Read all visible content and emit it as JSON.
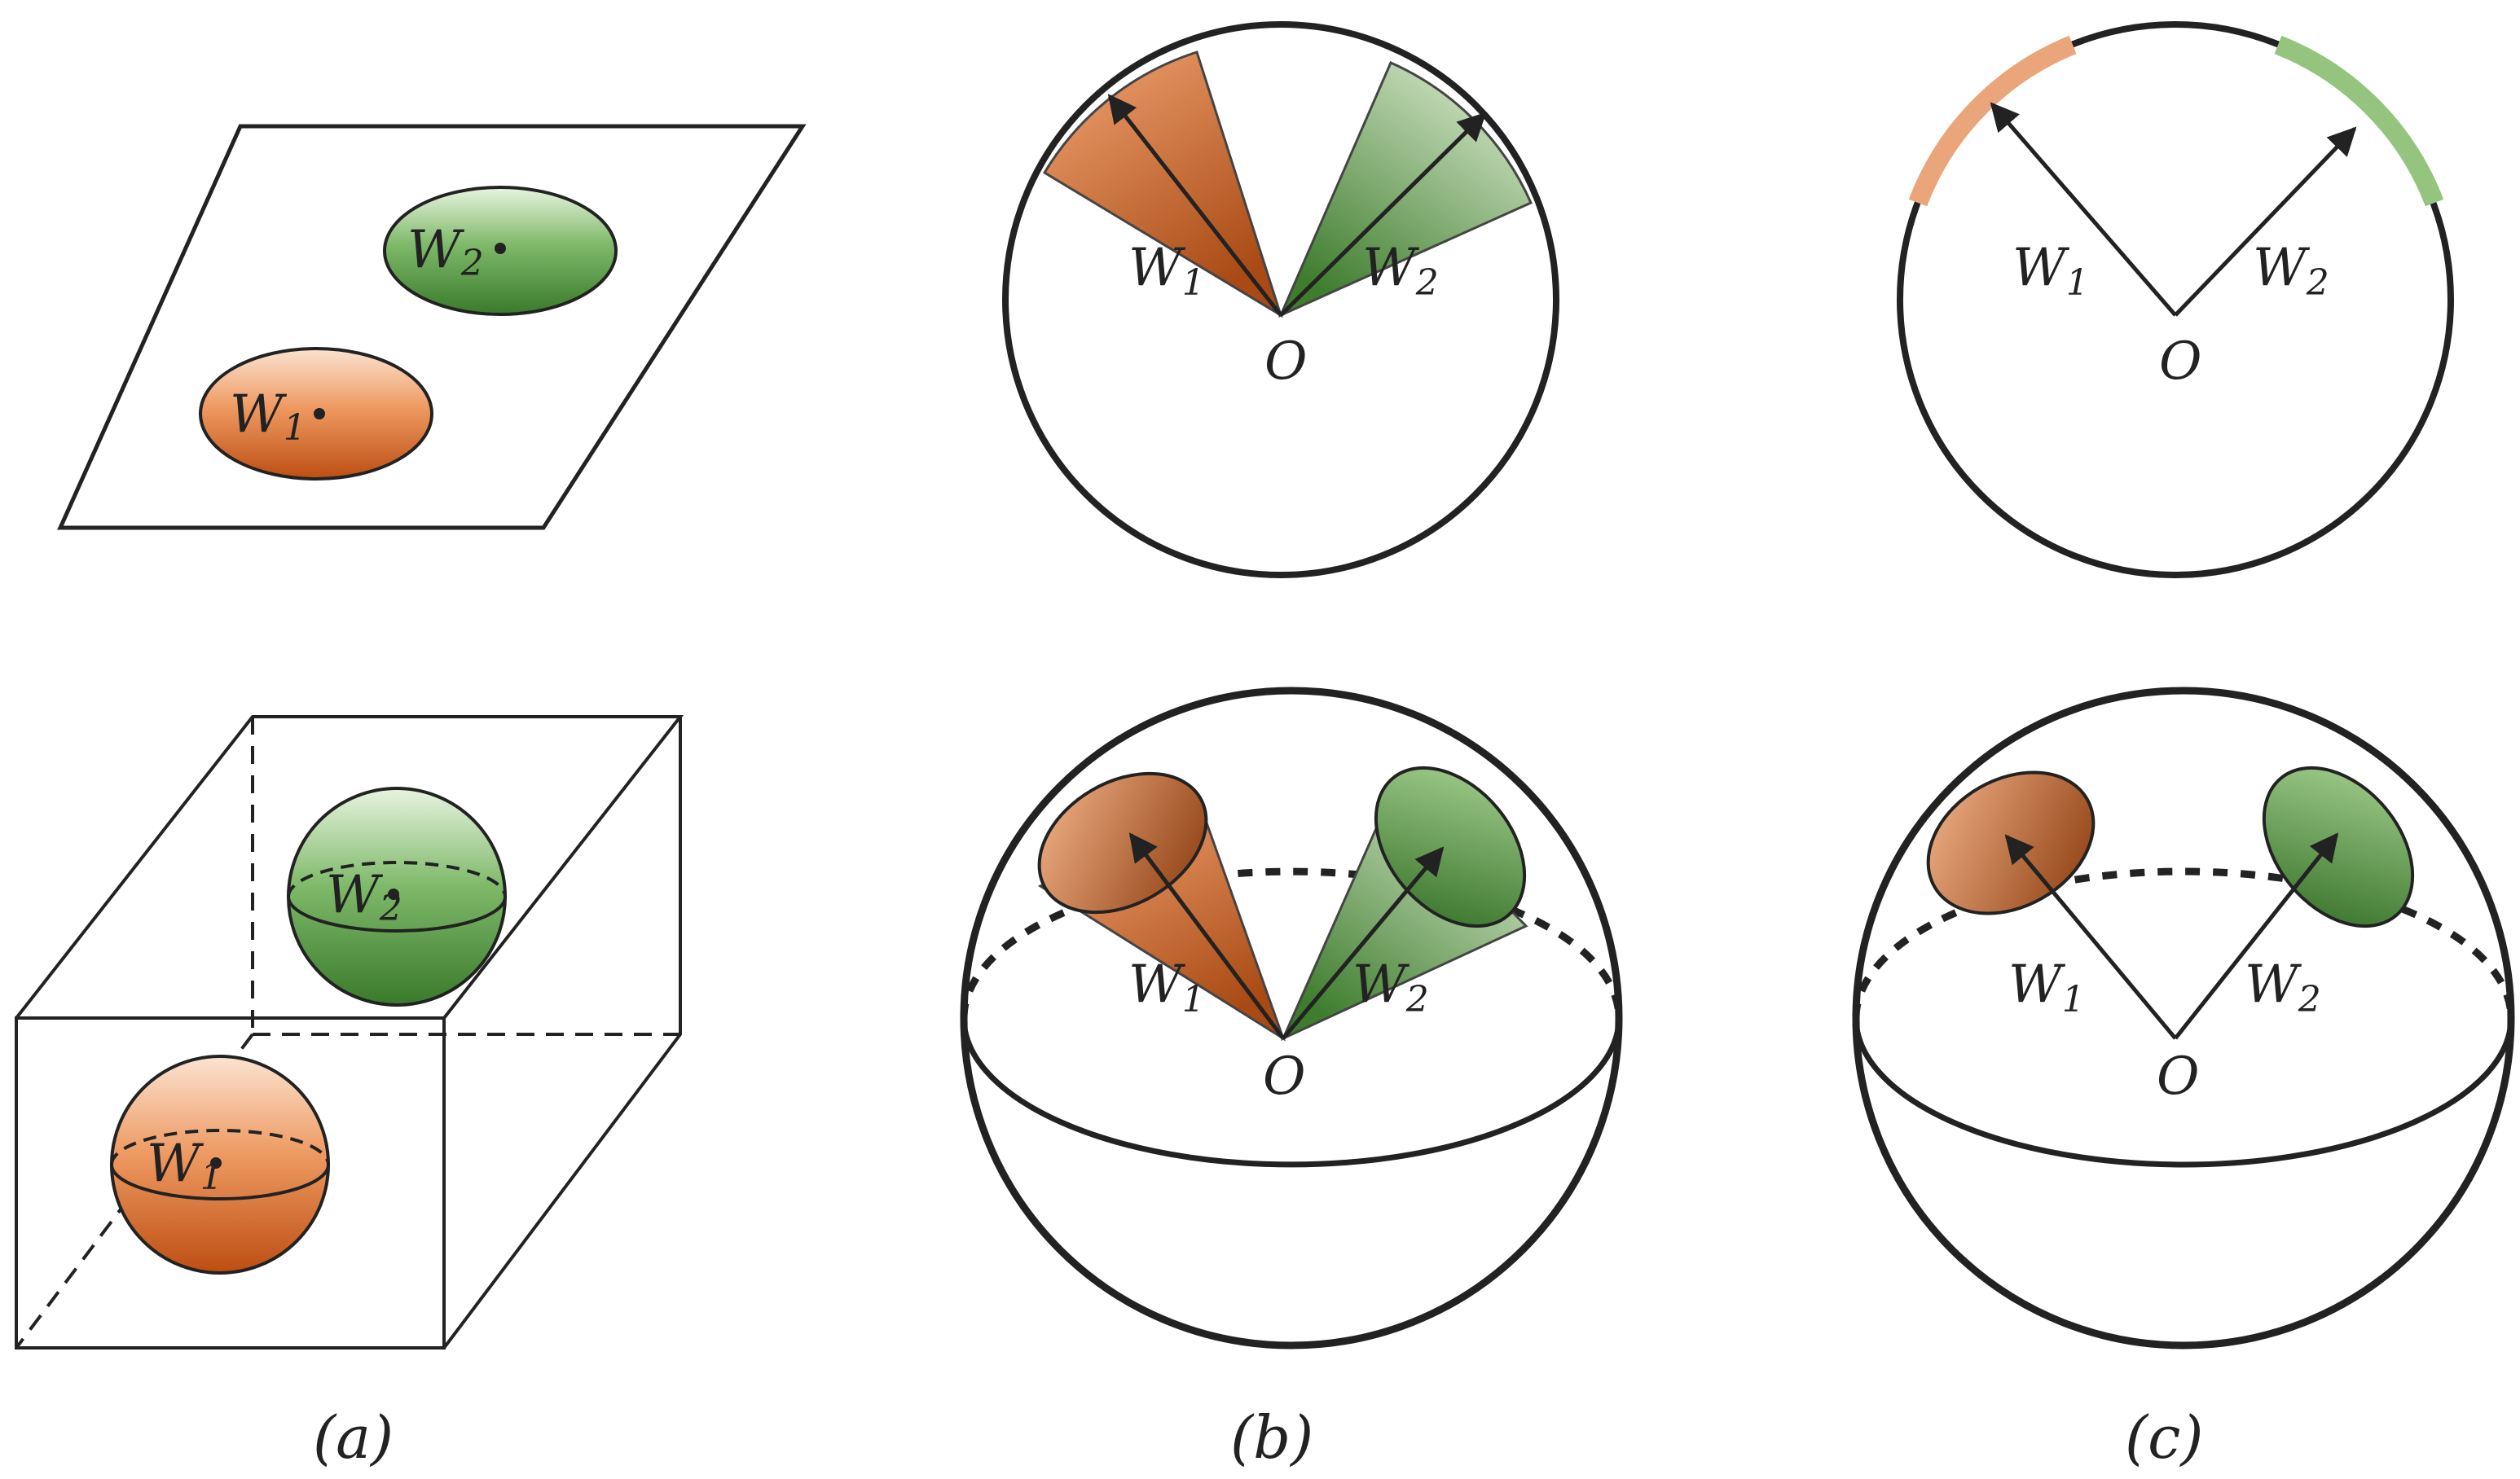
{
  "labels": {
    "w": "W",
    "sub1": "1",
    "sub2": "2",
    "origin": "O"
  },
  "captions": {
    "a": "(a)",
    "b": "(b)",
    "c": "(c)"
  },
  "colors": {
    "orange": "#e8945e",
    "orange_dark": "#c0541a",
    "green": "#8fc27a",
    "green_dark": "#3f7d2e",
    "line": "#222222"
  }
}
